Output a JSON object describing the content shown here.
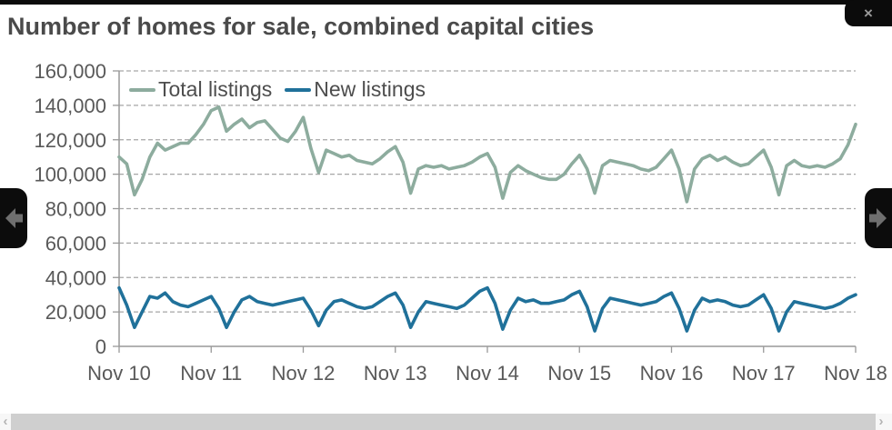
{
  "window": {
    "close_label": "×"
  },
  "scrollbar": {
    "left_arrow": "‹",
    "right_arrow": "›"
  },
  "chart_data": {
    "type": "line",
    "title": "Number of homes for sale, combined capital cities",
    "x_unit": "month",
    "x_start": "Nov 2010",
    "x_end": "Nov 2018",
    "x_tick_labels": [
      "Nov 10",
      "Nov 11",
      "Nov 12",
      "Nov 13",
      "Nov 14",
      "Nov 15",
      "Nov 16",
      "Nov 17",
      "Nov 18"
    ],
    "y_tick_labels": [
      "160,000",
      "140,000",
      "120,000",
      "100,000",
      "80,000",
      "60,000",
      "40,000",
      "20,000",
      "0"
    ],
    "ylim": [
      0,
      160000
    ],
    "grid": "horizontal-dashed",
    "legend_position": "top-left-inside",
    "colors": {
      "grid": "#a6a6a6",
      "axis": "#999999",
      "tick_text": "#595959",
      "title_text": "#4a4a4a"
    },
    "series": [
      {
        "name": "Total listings",
        "color": "#8dac9e",
        "values": [
          110000,
          106000,
          88000,
          97000,
          110000,
          118000,
          114000,
          116000,
          118000,
          118000,
          123000,
          129000,
          137000,
          139000,
          125000,
          129000,
          132000,
          127000,
          130000,
          131000,
          126000,
          121000,
          119000,
          125000,
          133000,
          115000,
          101000,
          114000,
          112000,
          110000,
          111000,
          108000,
          107000,
          106000,
          109000,
          113000,
          116000,
          107000,
          89000,
          103000,
          105000,
          104000,
          105000,
          103000,
          104000,
          105000,
          107000,
          110000,
          112000,
          104000,
          86000,
          101000,
          105000,
          102000,
          100000,
          98000,
          97000,
          97000,
          100000,
          106000,
          111000,
          103000,
          89000,
          105000,
          108000,
          107000,
          106000,
          105000,
          103000,
          102000,
          104000,
          109000,
          114000,
          103000,
          84000,
          103000,
          109000,
          111000,
          108000,
          110000,
          107000,
          105000,
          106000,
          110000,
          114000,
          104000,
          88000,
          105000,
          108000,
          105000,
          104000,
          105000,
          104000,
          106000,
          109000,
          117000,
          129000
        ]
      },
      {
        "name": "New listings",
        "color": "#20719a",
        "values": [
          34000,
          24000,
          11000,
          20000,
          29000,
          28000,
          31000,
          26000,
          24000,
          23000,
          25000,
          27000,
          29000,
          22000,
          11000,
          20000,
          27000,
          29000,
          26000,
          25000,
          24000,
          25000,
          26000,
          27000,
          28000,
          21000,
          12000,
          21000,
          26000,
          27000,
          25000,
          23000,
          22000,
          23000,
          26000,
          29000,
          31000,
          24000,
          11000,
          20000,
          26000,
          25000,
          24000,
          23000,
          22000,
          24000,
          28000,
          32000,
          34000,
          25000,
          10000,
          21000,
          28000,
          26000,
          27000,
          25000,
          25000,
          26000,
          27000,
          30000,
          32000,
          23000,
          9000,
          22000,
          28000,
          27000,
          26000,
          25000,
          24000,
          25000,
          26000,
          29000,
          31000,
          22000,
          9000,
          21000,
          28000,
          26000,
          27000,
          26000,
          24000,
          23000,
          24000,
          27000,
          30000,
          22000,
          9000,
          20000,
          26000,
          25000,
          24000,
          23000,
          22000,
          23000,
          25000,
          28000,
          30000
        ]
      }
    ]
  }
}
